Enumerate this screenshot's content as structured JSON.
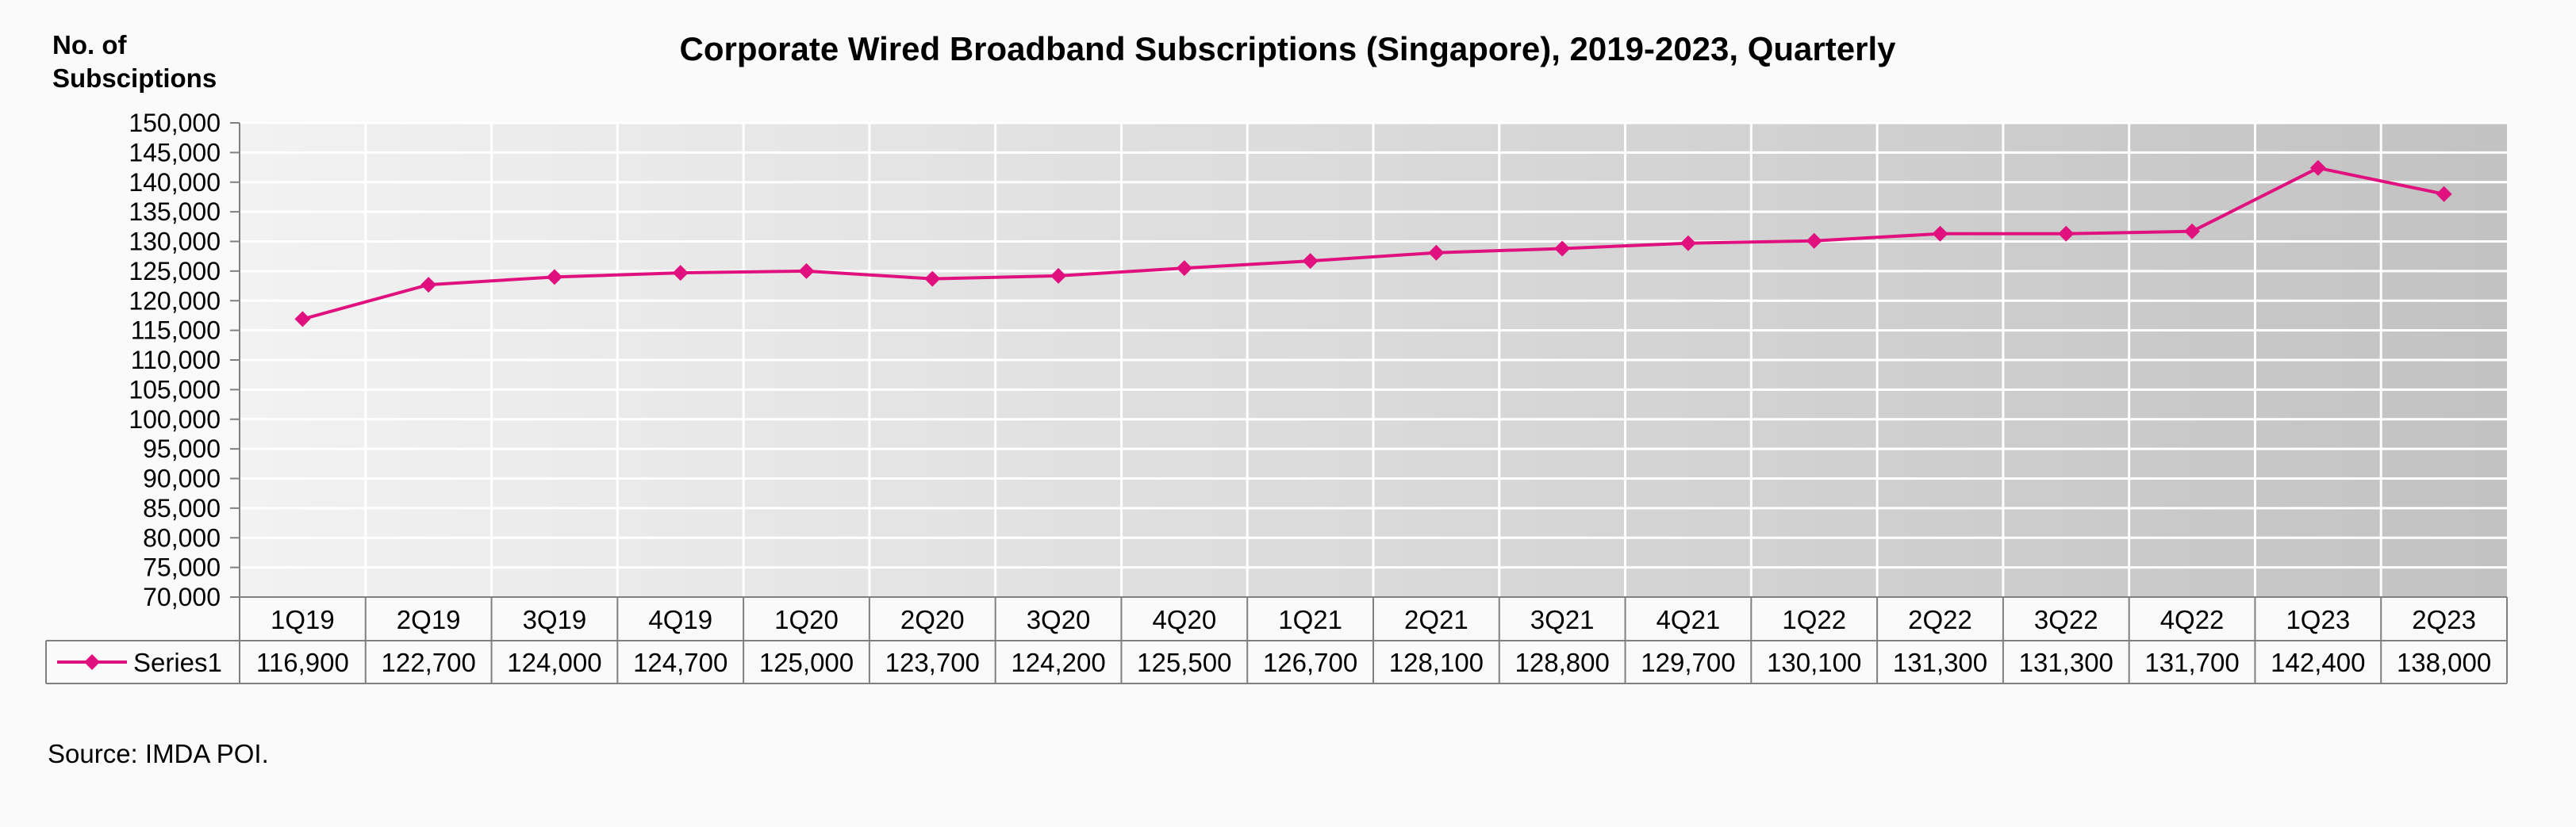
{
  "chart_data": {
    "type": "line",
    "title": "Corporate Wired Broadband Subscriptions (Singapore), 2019-2023, Quarterly",
    "ylabel_lines": [
      "No. of",
      "Subsciptions"
    ],
    "xlabel": "",
    "categories": [
      "1Q19",
      "2Q19",
      "3Q19",
      "4Q19",
      "1Q20",
      "2Q20",
      "3Q20",
      "4Q20",
      "1Q21",
      "2Q21",
      "3Q21",
      "4Q21",
      "1Q22",
      "2Q22",
      "3Q22",
      "4Q22",
      "1Q23",
      "2Q23"
    ],
    "series": [
      {
        "name": "Series1",
        "values": [
          116900,
          122700,
          124000,
          124700,
          125000,
          123700,
          124200,
          125500,
          126700,
          128100,
          128800,
          129700,
          130100,
          131300,
          131300,
          131700,
          142400,
          138000
        ],
        "color": "#e0117f",
        "marker": "diamond"
      }
    ],
    "table_values": [
      "116,900",
      "122,700",
      "124,000",
      "124,700",
      "125,000",
      "123,700",
      "124,200",
      "125,500",
      "126,700",
      "128,100",
      "128,800",
      "129,700",
      "130,100",
      "131,300",
      "131,300",
      "131,700",
      "142,400",
      "138,000"
    ],
    "ylim": [
      70000,
      150000
    ],
    "ytick_step": 5000,
    "ytick_labels": [
      "70,000",
      "75,000",
      "80,000",
      "85,000",
      "90,000",
      "95,000",
      "100,000",
      "105,000",
      "110,000",
      "115,000",
      "120,000",
      "125,000",
      "130,000",
      "135,000",
      "140,000",
      "145,000",
      "150,000"
    ],
    "grid": true,
    "data_table": true,
    "plot_background": [
      "#f2f2f2",
      "#c2c2c2"
    ]
  },
  "source_note": "Source: IMDA POI."
}
